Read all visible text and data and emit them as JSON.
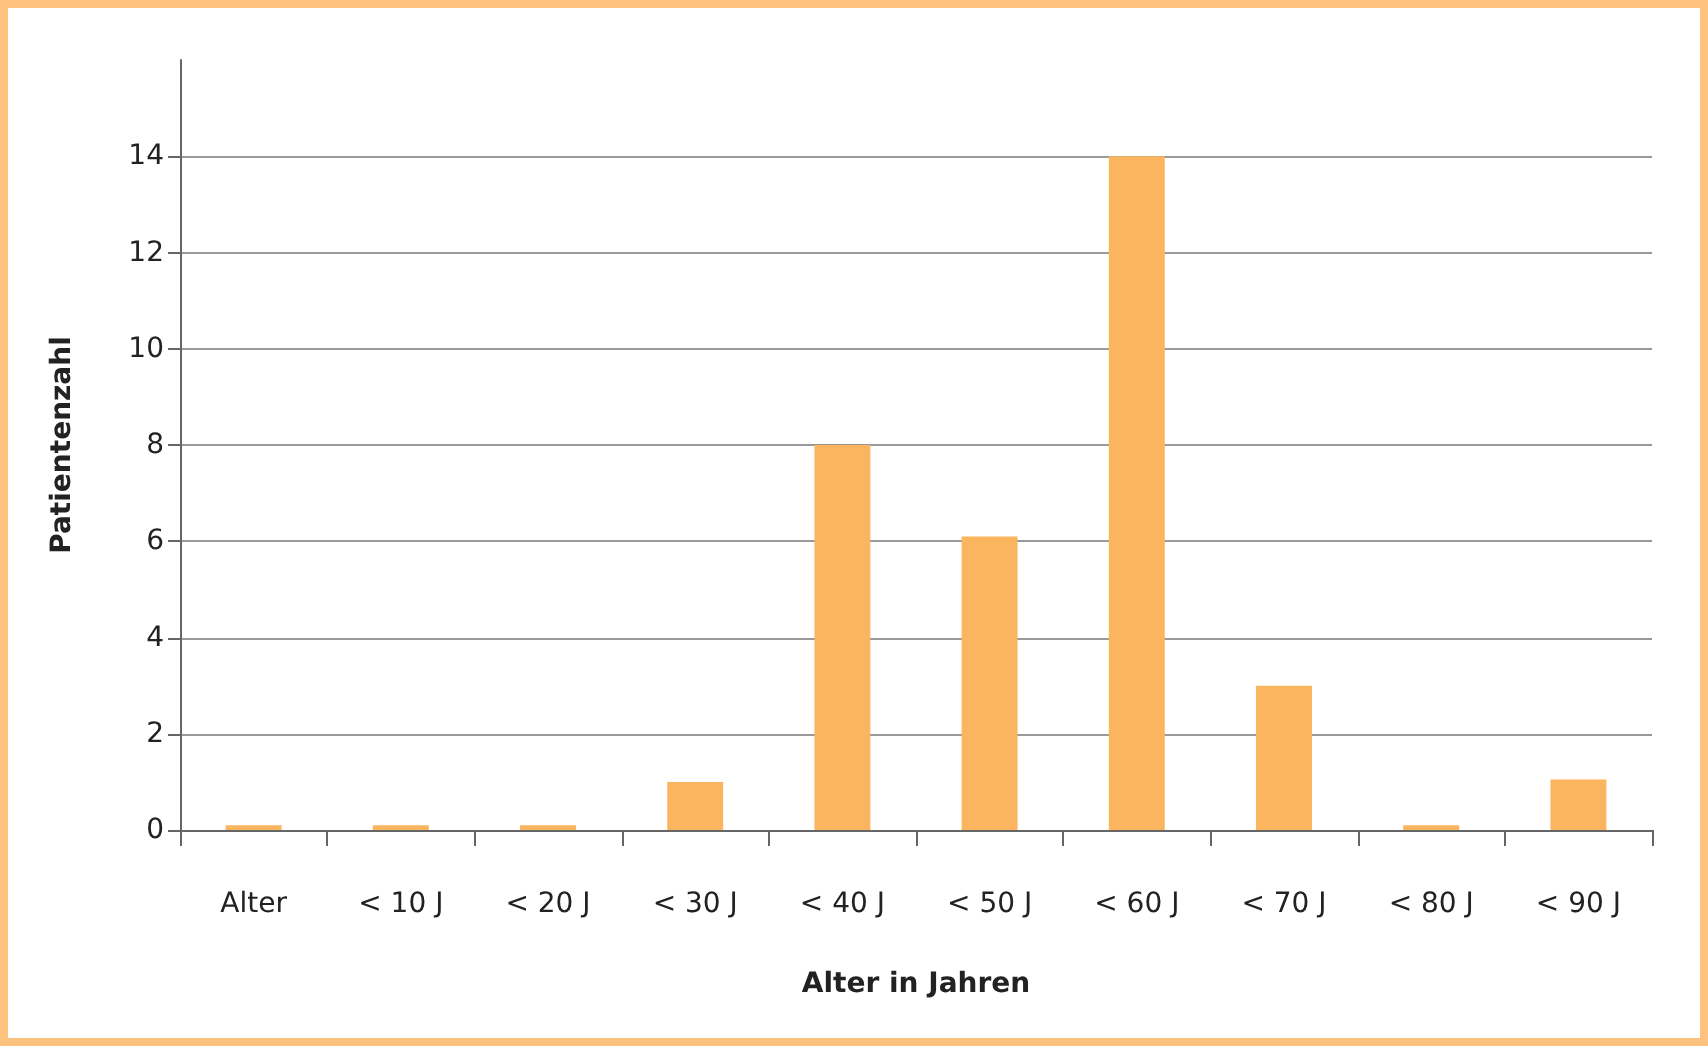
{
  "chart_data": {
    "type": "bar",
    "xlabel": "Alter in Jahren",
    "ylabel": "Patientenzahl",
    "categories": [
      "Alter",
      "< 10 J",
      "< 20 J",
      "< 30 J",
      "< 40 J",
      "< 50 J",
      "< 60 J",
      "< 70 J",
      "< 80 J",
      "< 90 J"
    ],
    "values": [
      0.1,
      0.1,
      0.1,
      1,
      8,
      6.1,
      14,
      3,
      0.1,
      1.05
    ],
    "color": "#fbb55e",
    "ylim": [
      0,
      16
    ],
    "yticks": [
      0,
      2,
      4,
      6,
      8,
      10,
      12,
      14
    ],
    "grid": "y"
  }
}
